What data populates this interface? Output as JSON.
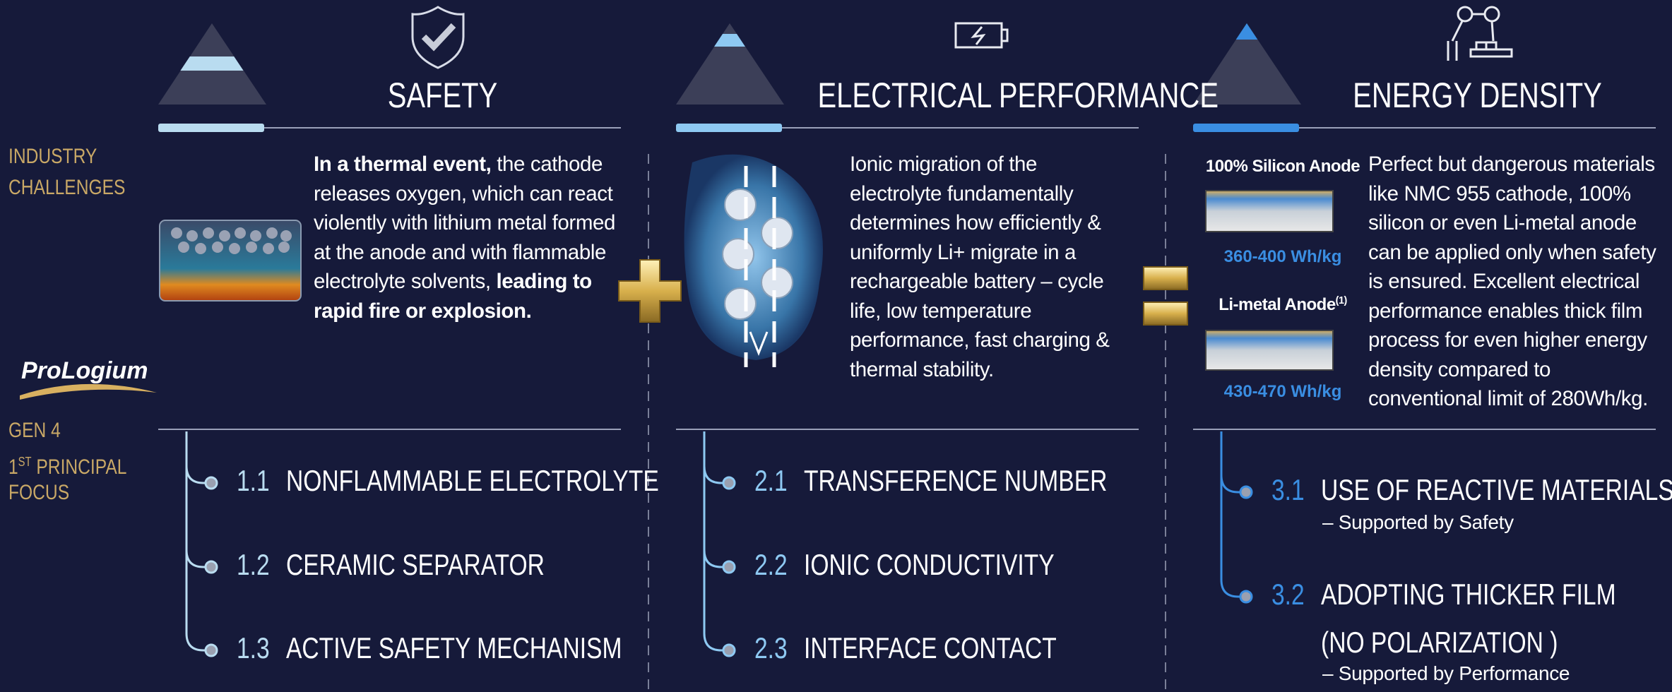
{
  "side": {
    "challenges": [
      "INDUSTRY",
      "CHALLENGES"
    ],
    "logo": "ProLogium",
    "focus": {
      "line1": "GEN 4",
      "num": "1",
      "sup": "ST",
      "rest": "PRINCIPAL",
      "line3": "FOCUS"
    }
  },
  "columns": [
    {
      "title": "SAFETY",
      "color": "#b9dcf0",
      "description": [
        {
          "text": "In a thermal event,",
          "bold": true
        },
        {
          "text": " the cathode releases oxygen, which can react violently with lithium metal formed at the anode and with flammable electrolyte solvents, ",
          "bold": false
        },
        {
          "text": "leading to rapid fire or explosion.",
          "bold": true
        }
      ],
      "items": [
        {
          "number": "1.1",
          "lines": [
            "NONFLAMMABLE ELECTROLYTE"
          ]
        },
        {
          "number": "1.2",
          "lines": [
            "CERAMIC SEPARATOR"
          ]
        },
        {
          "number": "1.3",
          "lines": [
            "ACTIVE SAFETY MECHANISM"
          ]
        }
      ]
    },
    {
      "title": "ELECTRICAL PERFORMANCE",
      "color": "#8ec9f2",
      "description": [
        {
          "text": "Ionic migration of the electrolyte fundamentally determines how efficiently & uniformly Li+ migrate in a rechargeable battery – cycle life, low temperature performance, fast charging & thermal stability.",
          "bold": false
        }
      ],
      "items": [
        {
          "number": "2.1",
          "lines": [
            "TRANSFERENCE NUMBER"
          ]
        },
        {
          "number": "2.2",
          "lines": [
            "IONIC CONDUCTIVITY"
          ]
        },
        {
          "number": "2.3",
          "lines": [
            "INTERFACE CONTACT"
          ]
        }
      ]
    },
    {
      "title": "ENERGY DENSITY",
      "color": "#3a8ee2",
      "description": [
        {
          "text": "Perfect but dangerous materials like NMC 955 cathode, 100% silicon or even Li-metal anode can be applied only when safety is ensured. Excellent electrical performance enables thick film process for even higher energy density compared to conventional limit of 280Wh/kg.",
          "bold": false
        }
      ],
      "anodes": [
        {
          "label": "100% Silicon Anode",
          "value": "360-400 Wh/kg"
        },
        {
          "label": "Li-metal Anode",
          "sup": "(1)",
          "value": "430-470 Wh/kg"
        }
      ],
      "items": [
        {
          "number": "3.1",
          "lines": [
            "USE OF REACTIVE MATERIALS"
          ],
          "note": "– Supported by Safety"
        },
        {
          "number": "3.2",
          "lines": [
            "ADOPTING THICKER FILM",
            "(NO POLARIZATION )"
          ],
          "note": "– Supported by Performance"
        }
      ]
    }
  ]
}
